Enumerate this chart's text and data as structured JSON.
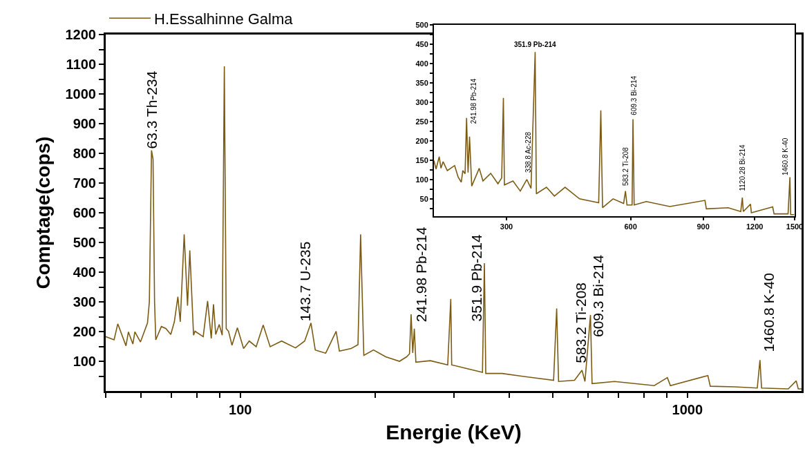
{
  "chart_data": [
    {
      "type": "line",
      "xlabel": "Energie (KeV)",
      "ylabel": "Comptage(cops)",
      "log": "x",
      "grid": false,
      "legend": "top left",
      "marker": "none",
      "line_style": "solid",
      "xlim": [
        50,
        1800
      ],
      "ylim": [
        0,
        1200
      ],
      "xticks": [
        {
          "value": 50,
          "label": null
        },
        {
          "value": 60,
          "label": null
        },
        {
          "value": 70,
          "label": null
        },
        {
          "value": 80,
          "label": null
        },
        {
          "value": 90,
          "label": null
        },
        100,
        {
          "value": 200,
          "label": null
        },
        {
          "value": 300,
          "label": null
        },
        {
          "value": 400,
          "label": null
        },
        {
          "value": 500,
          "label": null
        },
        {
          "value": 600,
          "label": null
        },
        {
          "value": 700,
          "label": null
        },
        {
          "value": 800,
          "label": null
        },
        {
          "value": 900,
          "label": null
        },
        1000
      ],
      "yticks": [
        {
          "value": 50,
          "label": null
        },
        100,
        {
          "value": 150,
          "label": null
        },
        200,
        {
          "value": 250,
          "label": null
        },
        300,
        {
          "value": 350,
          "label": null
        },
        400,
        {
          "value": 450,
          "label": null
        },
        500,
        {
          "value": 550,
          "label": null
        },
        600,
        {
          "value": 650,
          "label": null
        },
        700,
        {
          "value": 750,
          "label": null
        },
        800,
        {
          "value": 850,
          "label": null
        },
        900,
        {
          "value": 950,
          "label": null
        },
        1000,
        {
          "value": 1050,
          "label": null
        },
        1100,
        {
          "value": 1150,
          "label": null
        },
        1200
      ],
      "x": [
        50,
        52.2,
        53.2,
        55.5,
        56.2,
        57.5,
        58.1,
        59.8,
        62,
        62.6,
        63.3,
        63.8,
        64.3,
        64.7,
        66.6,
        68.2,
        69.9,
        71.2,
        72.5,
        73.4,
        74.9,
        76.2,
        77.1,
        78.6,
        79.2,
        82.6,
        84.5,
        86.1,
        87.1,
        88.1,
        89.7,
        91.1,
        92.1,
        93,
        94.1,
        95.8,
        98.5,
        101.7,
        104.7,
        108.5,
        112.5,
        116.6,
        123.7,
        132.9,
        139.3,
        143.9,
        147.1,
        155.2,
        163.8,
        166.6,
        176.9,
        183.3,
        185.8,
        188.9,
        198.6,
        211.4,
        227,
        235.5,
        239,
        241,
        243,
        245,
        247,
        266,
        291,
        295.6,
        297,
        322,
        348,
        351.5,
        354,
        385,
        425,
        502,
        510,
        515,
        559,
        581,
        590,
        607,
        612,
        687,
        843,
        902,
        916,
        1111,
        1125,
        1274,
        1433,
        1453,
        1465,
        1681,
        1751,
        1770,
        1800
      ],
      "series": [
        {
          "name": "H.Essalhinne Galma",
          "color": "#7b5b14",
          "values": [
            183,
            172,
            226,
            152,
            199,
            158,
            199,
            165,
            229,
            300,
            810,
            780,
            300,
            172,
            217,
            210,
            190,
            233,
            317,
            233,
            527,
            287,
            473,
            188,
            201,
            183,
            303,
            177,
            292,
            190,
            224,
            188,
            1093,
            210,
            201,
            154,
            213,
            143,
            168,
            149,
            222,
            149,
            168,
            145,
            168,
            229,
            138,
            127,
            201,
            134,
            143,
            156,
            527,
            120,
            138,
            115,
            100,
            115,
            125,
            258,
            128,
            210,
            97,
            102,
            88,
            310,
            88,
            75,
            63,
            430,
            59,
            59,
            50,
            36,
            278,
            32,
            36,
            70,
            32,
            256,
            25,
            32,
            18,
            45,
            18,
            52,
            16,
            14,
            10,
            104,
            10,
            7,
            34,
            7,
            7
          ]
        }
      ],
      "annotations": [
        {
          "text": "63.3 Th-234",
          "x": 63.3,
          "y": 810
        },
        {
          "text": "143.7 U-235",
          "x": 143.7,
          "y": 229
        },
        {
          "text": "241.98 Pb-214",
          "x": 241.98,
          "y": 258
        },
        {
          "text": "351.9 Pb-214",
          "x": 351.9,
          "y": 430
        },
        {
          "text": "583.2 Ti-208",
          "x": 583.2,
          "y": 70
        },
        {
          "text": "609.3 Bi-214",
          "x": 609.3,
          "y": 256
        },
        {
          "text": "1460.8 K-40",
          "x": 1460.8,
          "y": 104
        }
      ]
    },
    {
      "type": "line",
      "log": "x",
      "grid": false,
      "marker": "none",
      "line_style": "solid",
      "xlim": [
        200,
        1500
      ],
      "ylim": [
        5,
        500
      ],
      "xticks": [
        300,
        600,
        900,
        1200,
        1500
      ],
      "yticks": [
        {
          "value": 25,
          "label": null
        },
        50,
        {
          "value": 75,
          "label": null
        },
        100,
        {
          "value": 125,
          "label": null
        },
        150,
        {
          "value": 175,
          "label": null
        },
        200,
        {
          "value": 225,
          "label": null
        },
        250,
        {
          "value": 275,
          "label": null
        },
        300,
        {
          "value": 325,
          "label": null
        },
        350,
        {
          "value": 375,
          "label": null
        },
        400,
        {
          "value": 425,
          "label": null
        },
        450,
        {
          "value": 475,
          "label": null
        },
        500
      ],
      "x": [
        200,
        202.4,
        206,
        208,
        210.5,
        215.5,
        224.5,
        229,
        233,
        235,
        238,
        240,
        242,
        244,
        247,
        257.6,
        263,
        274.6,
        286,
        292,
        294.8,
        296.5,
        311,
        324,
        336,
        344,
        352,
        354.4,
        375,
        392,
        416,
        451,
        502,
        508,
        513,
        544,
        577,
        583,
        588,
        605,
        608,
        612,
        655,
        747,
        909,
        916,
        1035,
        1110,
        1120,
        1126,
        1172,
        1178,
        1327,
        1337,
        1446,
        1461,
        1467,
        1496
      ],
      "series": [
        {
          "color": "#7b5b14",
          "values": [
            149,
            127,
            159,
            129,
            146,
            123,
            136,
            106,
            93,
            123,
            115,
            259,
            118,
            211,
            83,
            129,
            96,
            116,
            89,
            104,
            311,
            86,
            96,
            70,
            100,
            77,
            430,
            63,
            80,
            57,
            80,
            50,
            40,
            279,
            27,
            50,
            38,
            70,
            34,
            34,
            256,
            34,
            43,
            30,
            46,
            24,
            27,
            17,
            53,
            17,
            36,
            14,
            29,
            11,
            11,
            106,
            9,
            9
          ]
        }
      ],
      "annotations": [
        {
          "text": "241.98 Pb-214",
          "x": 241.98,
          "y": 259
        },
        {
          "text": "351.9 Pb-214",
          "x": 351.9,
          "y": 430
        },
        {
          "text": "338.8 Ac-228",
          "x": 338.8,
          "y": 100
        },
        {
          "text": "583.2 Ti-208",
          "x": 583.2,
          "y": 70
        },
        {
          "text": "609.3 Bi-214",
          "x": 609.3,
          "y": 256
        },
        {
          "text": "1120.28 Bi-214",
          "x": 1120.28,
          "y": 53
        },
        {
          "text": "1460.8 K-40",
          "x": 1460.8,
          "y": 106
        }
      ]
    }
  ]
}
